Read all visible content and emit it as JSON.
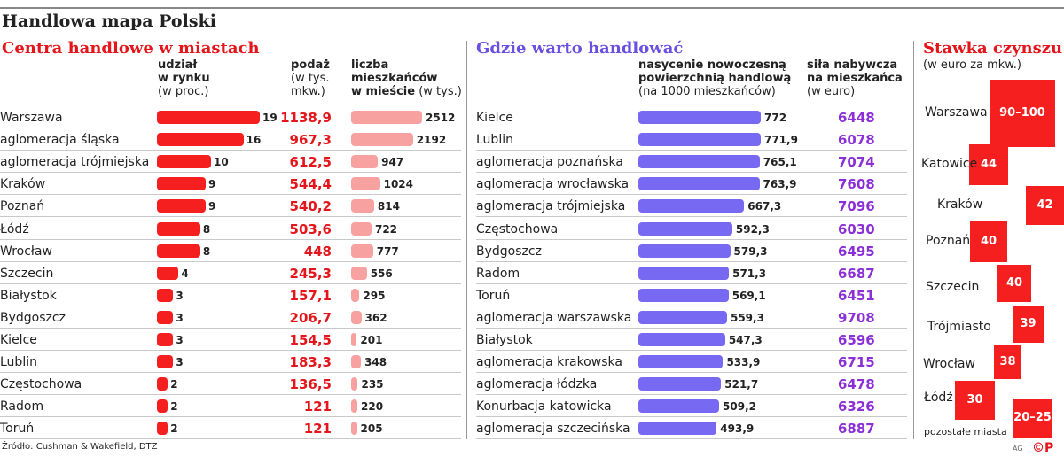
{
  "title": "Handlowa mapa Polski",
  "footer": "Źródło: Cushman & Wakefield, DTZ",
  "credit": "AG",
  "logo": "©P",
  "left": {
    "title": "Centra handlowe w miastach",
    "h_udzial_bold": "udział\nw rynku",
    "h_udzial_unit": "(w proc.)",
    "h_podaz_bold": "podaż",
    "h_podaz_unit": "(w tys.\nmkw.)",
    "h_liczba_bold": "liczba\nmieszkańców\nw mieście",
    "h_liczba_unit": " (w tys.)"
  },
  "middle": {
    "title": "Gdzie warto handlować",
    "h_nas_bold": "nasycenie nowoczesną\npowierzchnią handlową",
    "h_nas_unit": "(na 1000 mieszkańców)",
    "h_sila_bold": "siła nabywcza\nna mieszkańca",
    "h_sila_unit": "(w euro)"
  },
  "right": {
    "title": "Stawka czynszu",
    "subtitle": "(w euro za mkw.)"
  },
  "colors": {
    "red": "#f51f1f",
    "pink": "#f7a1a1",
    "purple": "#7769f2",
    "purple_text": "#8b2fd6"
  },
  "chart_data": [
    {
      "type": "bar",
      "title": "Centra handlowe w miastach",
      "categories": [
        "Warszawa",
        "aglomeracja śląska",
        "aglomeracja trójmiejska",
        "Kraków",
        "Poznań",
        "Łódź",
        "Wrocław",
        "Szczecin",
        "Białystok",
        "Bydgoszcz",
        "Kielce",
        "Lublin",
        "Częstochowa",
        "Radom",
        "Toruń"
      ],
      "series": [
        {
          "name": "udział w rynku (w proc.)",
          "values": [
            "19",
            "16",
            "10",
            "9",
            "9",
            "8",
            "8",
            "4",
            "3",
            "3",
            "3",
            "3",
            "2",
            "2",
            "2"
          ]
        },
        {
          "name": "podaż (w tys. mkw.)",
          "values": [
            "1138,9",
            "967,3",
            "612,5",
            "544,4",
            "540,2",
            "503,6",
            "448",
            "245,3",
            "157,1",
            "206,7",
            "154,5",
            "183,3",
            "136,5",
            "121",
            "121"
          ]
        },
        {
          "name": "liczba mieszkańców w mieście (w tys.)",
          "values": [
            "2512",
            "2192",
            "947",
            "1024",
            "814",
            "722",
            "777",
            "556",
            "295",
            "362",
            "201",
            "348",
            "235",
            "220",
            "205"
          ]
        }
      ]
    },
    {
      "type": "bar",
      "title": "Gdzie warto handlować",
      "categories": [
        "Kielce",
        "Lublin",
        "aglomeracja poznańska",
        "aglomeracja wrocławska",
        "aglomeracja trójmiejska",
        "Częstochowa",
        "Bydgoszcz",
        "Radom",
        "Toruń",
        "aglomeracja warszawska",
        "Białystok",
        "aglomeracja krakowska",
        "aglomeracja łódzka",
        "Konurbacja katowicka",
        "aglomeracja szczecińska"
      ],
      "series": [
        {
          "name": "nasycenie nowoczesną powierzchnią handlową (na 1000 mieszkańców)",
          "values": [
            "772",
            "771,9",
            "765,1",
            "763,9",
            "667,3",
            "592,3",
            "579,3",
            "571,3",
            "569,1",
            "559,3",
            "547,3",
            "533,9",
            "521,7",
            "509,2",
            "493,9"
          ]
        },
        {
          "name": "siła nabywcza na mieszkańca (w euro)",
          "values": [
            "6448",
            "6078",
            "7074",
            "7608",
            "7096",
            "6030",
            "6495",
            "6687",
            "6451",
            "9708",
            "6596",
            "6715",
            "6478",
            "6326",
            "6887"
          ]
        }
      ]
    },
    {
      "type": "bar",
      "title": "Stawka czynszu",
      "subtitle": "(w euro za mkw.)",
      "categories": [
        "Warszawa",
        "Katowice",
        "Kraków",
        "Poznań",
        "Szczecin",
        "Trójmiasto",
        "Wrocław",
        "Łódź",
        "pozostałe miasta"
      ],
      "values": [
        "90–100",
        "44",
        "42",
        "40",
        "40",
        "39",
        "38",
        "30",
        "20–25"
      ]
    }
  ]
}
